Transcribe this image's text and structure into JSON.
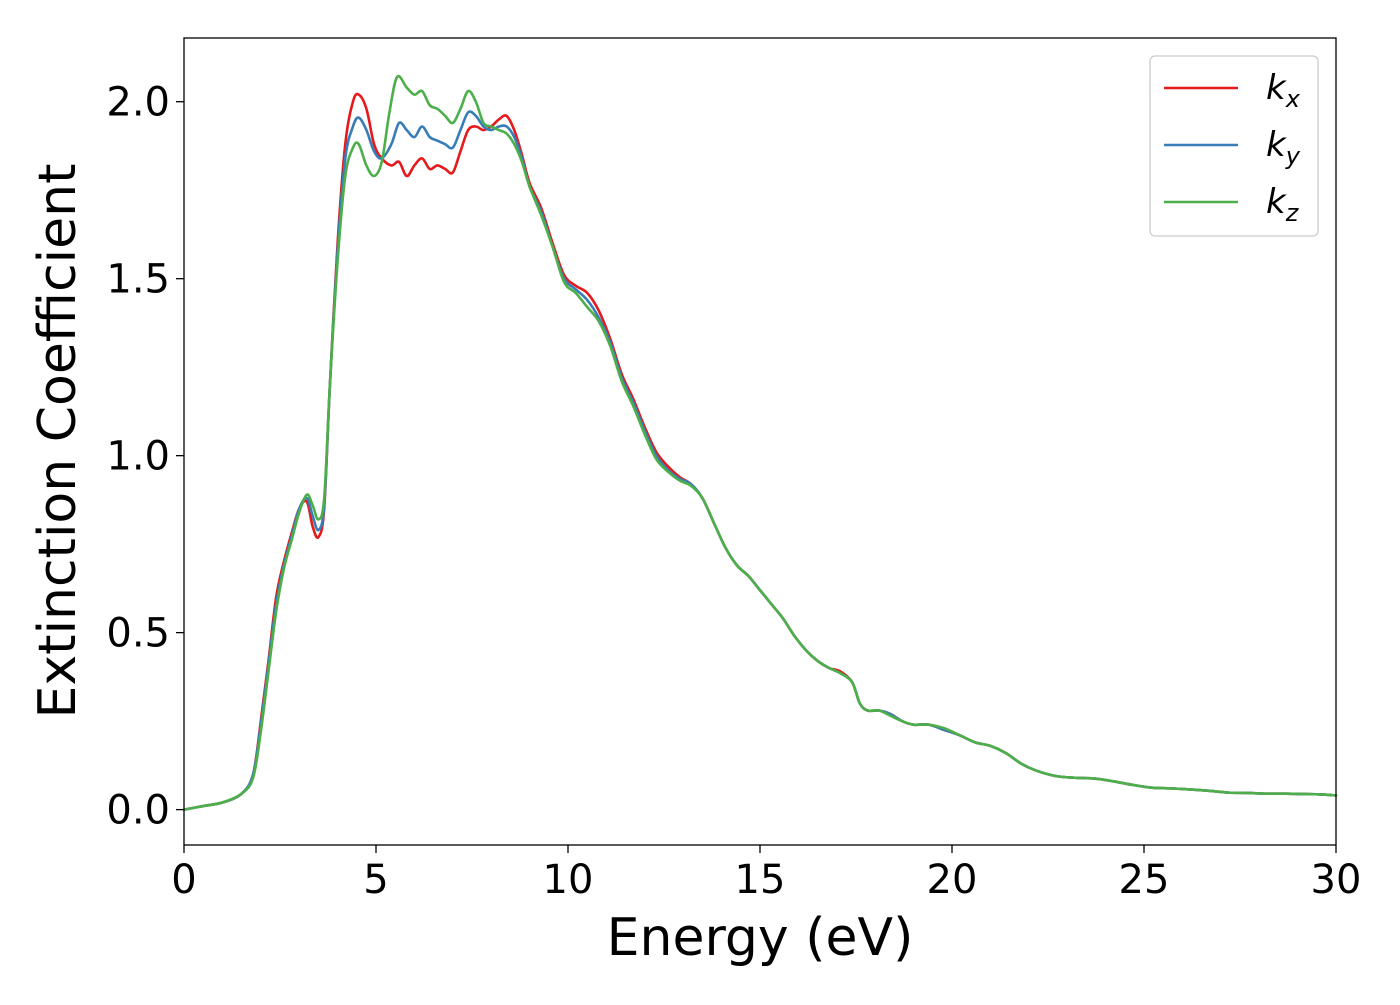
{
  "chart_data": {
    "type": "line",
    "xlabel": "Energy (eV)",
    "ylabel": "Extinction Coefficient",
    "xlim": [
      0,
      30
    ],
    "ylim": [
      -0.1,
      2.18
    ],
    "x_ticks": [
      "0",
      "5",
      "10",
      "15",
      "20",
      "25",
      "30"
    ],
    "y_ticks": [
      "0.0",
      "0.5",
      "1.0",
      "1.5",
      "2.0"
    ],
    "grid": false,
    "legend_position": "top-right",
    "series": [
      {
        "name": "k",
        "subscript": "x",
        "color": "#e41a1c",
        "points": [
          [
            0,
            0.0
          ],
          [
            0.5,
            0.01
          ],
          [
            1.0,
            0.02
          ],
          [
            1.5,
            0.045
          ],
          [
            1.8,
            0.1
          ],
          [
            2.0,
            0.25
          ],
          [
            2.2,
            0.42
          ],
          [
            2.4,
            0.6
          ],
          [
            2.6,
            0.7
          ],
          [
            2.8,
            0.78
          ],
          [
            3.0,
            0.85
          ],
          [
            3.2,
            0.87
          ],
          [
            3.35,
            0.8
          ],
          [
            3.5,
            0.77
          ],
          [
            3.65,
            0.85
          ],
          [
            3.8,
            1.2
          ],
          [
            4.0,
            1.6
          ],
          [
            4.2,
            1.88
          ],
          [
            4.4,
            2.0
          ],
          [
            4.55,
            2.02
          ],
          [
            4.75,
            1.98
          ],
          [
            4.95,
            1.88
          ],
          [
            5.15,
            1.84
          ],
          [
            5.4,
            1.82
          ],
          [
            5.6,
            1.83
          ],
          [
            5.8,
            1.79
          ],
          [
            6.0,
            1.82
          ],
          [
            6.2,
            1.84
          ],
          [
            6.4,
            1.81
          ],
          [
            6.6,
            1.82
          ],
          [
            6.8,
            1.81
          ],
          [
            7.0,
            1.8
          ],
          [
            7.2,
            1.86
          ],
          [
            7.4,
            1.92
          ],
          [
            7.6,
            1.93
          ],
          [
            7.8,
            1.92
          ],
          [
            8.0,
            1.93
          ],
          [
            8.2,
            1.95
          ],
          [
            8.4,
            1.96
          ],
          [
            8.6,
            1.92
          ],
          [
            8.8,
            1.85
          ],
          [
            9.0,
            1.77
          ],
          [
            9.3,
            1.7
          ],
          [
            9.6,
            1.6
          ],
          [
            9.9,
            1.51
          ],
          [
            10.2,
            1.48
          ],
          [
            10.5,
            1.46
          ],
          [
            10.8,
            1.41
          ],
          [
            11.1,
            1.33
          ],
          [
            11.4,
            1.23
          ],
          [
            11.7,
            1.16
          ],
          [
            12.0,
            1.08
          ],
          [
            12.3,
            1.01
          ],
          [
            12.6,
            0.97
          ],
          [
            12.9,
            0.94
          ],
          [
            13.2,
            0.92
          ],
          [
            13.5,
            0.88
          ],
          [
            13.8,
            0.81
          ],
          [
            14.1,
            0.74
          ],
          [
            14.4,
            0.69
          ],
          [
            14.7,
            0.66
          ],
          [
            15.0,
            0.62
          ],
          [
            15.3,
            0.58
          ],
          [
            15.6,
            0.54
          ],
          [
            15.9,
            0.49
          ],
          [
            16.2,
            0.45
          ],
          [
            16.5,
            0.42
          ],
          [
            16.8,
            0.4
          ],
          [
            17.1,
            0.39
          ],
          [
            17.4,
            0.36
          ],
          [
            17.6,
            0.3
          ],
          [
            17.8,
            0.28
          ],
          [
            18.1,
            0.28
          ],
          [
            18.4,
            0.27
          ],
          [
            18.7,
            0.25
          ],
          [
            19.0,
            0.24
          ],
          [
            19.4,
            0.24
          ],
          [
            19.8,
            0.225
          ],
          [
            20.2,
            0.21
          ],
          [
            20.6,
            0.19
          ],
          [
            21.0,
            0.18
          ],
          [
            21.4,
            0.16
          ],
          [
            21.8,
            0.13
          ],
          [
            22.2,
            0.11
          ],
          [
            22.7,
            0.095
          ],
          [
            23.2,
            0.09
          ],
          [
            23.7,
            0.088
          ],
          [
            24.2,
            0.08
          ],
          [
            24.7,
            0.07
          ],
          [
            25.2,
            0.062
          ],
          [
            25.7,
            0.06
          ],
          [
            26.2,
            0.057
          ],
          [
            26.7,
            0.053
          ],
          [
            27.2,
            0.048
          ],
          [
            27.7,
            0.047
          ],
          [
            28.2,
            0.045
          ],
          [
            28.7,
            0.045
          ],
          [
            29.2,
            0.044
          ],
          [
            29.6,
            0.043
          ],
          [
            30.0,
            0.04
          ]
        ]
      },
      {
        "name": "k",
        "subscript": "y",
        "color": "#377eb8",
        "points": [
          [
            0,
            0.0
          ],
          [
            0.5,
            0.01
          ],
          [
            1.0,
            0.02
          ],
          [
            1.5,
            0.045
          ],
          [
            1.8,
            0.1
          ],
          [
            2.0,
            0.24
          ],
          [
            2.2,
            0.41
          ],
          [
            2.4,
            0.58
          ],
          [
            2.6,
            0.69
          ],
          [
            2.8,
            0.77
          ],
          [
            3.0,
            0.85
          ],
          [
            3.2,
            0.88
          ],
          [
            3.35,
            0.83
          ],
          [
            3.5,
            0.79
          ],
          [
            3.65,
            0.86
          ],
          [
            3.8,
            1.2
          ],
          [
            4.0,
            1.58
          ],
          [
            4.2,
            1.84
          ],
          [
            4.4,
            1.93
          ],
          [
            4.55,
            1.955
          ],
          [
            4.75,
            1.92
          ],
          [
            4.95,
            1.86
          ],
          [
            5.15,
            1.84
          ],
          [
            5.4,
            1.88
          ],
          [
            5.6,
            1.94
          ],
          [
            5.8,
            1.92
          ],
          [
            6.0,
            1.9
          ],
          [
            6.2,
            1.93
          ],
          [
            6.4,
            1.9
          ],
          [
            6.6,
            1.89
          ],
          [
            6.8,
            1.88
          ],
          [
            7.0,
            1.87
          ],
          [
            7.2,
            1.92
          ],
          [
            7.4,
            1.97
          ],
          [
            7.6,
            1.96
          ],
          [
            7.8,
            1.93
          ],
          [
            8.0,
            1.92
          ],
          [
            8.2,
            1.93
          ],
          [
            8.4,
            1.93
          ],
          [
            8.6,
            1.9
          ],
          [
            8.8,
            1.84
          ],
          [
            9.0,
            1.76
          ],
          [
            9.3,
            1.69
          ],
          [
            9.6,
            1.59
          ],
          [
            9.9,
            1.5
          ],
          [
            10.2,
            1.47
          ],
          [
            10.5,
            1.44
          ],
          [
            10.8,
            1.39
          ],
          [
            11.1,
            1.32
          ],
          [
            11.4,
            1.22
          ],
          [
            11.7,
            1.15
          ],
          [
            12.0,
            1.07
          ],
          [
            12.3,
            1.0
          ],
          [
            12.6,
            0.96
          ],
          [
            12.9,
            0.935
          ],
          [
            13.2,
            0.92
          ],
          [
            13.5,
            0.88
          ],
          [
            13.8,
            0.81
          ],
          [
            14.1,
            0.74
          ],
          [
            14.4,
            0.69
          ],
          [
            14.7,
            0.66
          ],
          [
            15.0,
            0.62
          ],
          [
            15.3,
            0.58
          ],
          [
            15.6,
            0.54
          ],
          [
            15.9,
            0.49
          ],
          [
            16.2,
            0.45
          ],
          [
            16.5,
            0.42
          ],
          [
            16.8,
            0.4
          ],
          [
            17.1,
            0.385
          ],
          [
            17.4,
            0.36
          ],
          [
            17.6,
            0.3
          ],
          [
            17.8,
            0.28
          ],
          [
            18.1,
            0.28
          ],
          [
            18.4,
            0.27
          ],
          [
            18.7,
            0.25
          ],
          [
            19.0,
            0.24
          ],
          [
            19.4,
            0.24
          ],
          [
            19.8,
            0.225
          ],
          [
            20.2,
            0.21
          ],
          [
            20.6,
            0.19
          ],
          [
            21.0,
            0.18
          ],
          [
            21.4,
            0.16
          ],
          [
            21.8,
            0.13
          ],
          [
            22.2,
            0.11
          ],
          [
            22.7,
            0.095
          ],
          [
            23.2,
            0.09
          ],
          [
            23.7,
            0.088
          ],
          [
            24.2,
            0.08
          ],
          [
            24.7,
            0.07
          ],
          [
            25.2,
            0.062
          ],
          [
            25.7,
            0.06
          ],
          [
            26.2,
            0.057
          ],
          [
            26.7,
            0.053
          ],
          [
            27.2,
            0.048
          ],
          [
            27.7,
            0.047
          ],
          [
            28.2,
            0.045
          ],
          [
            28.7,
            0.045
          ],
          [
            29.2,
            0.044
          ],
          [
            29.6,
            0.043
          ],
          [
            30.0,
            0.04
          ]
        ]
      },
      {
        "name": "k",
        "subscript": "z",
        "color": "#4daf4a",
        "points": [
          [
            0,
            0.0
          ],
          [
            0.5,
            0.01
          ],
          [
            1.0,
            0.02
          ],
          [
            1.5,
            0.045
          ],
          [
            1.8,
            0.09
          ],
          [
            2.0,
            0.22
          ],
          [
            2.2,
            0.39
          ],
          [
            2.4,
            0.56
          ],
          [
            2.6,
            0.68
          ],
          [
            2.8,
            0.76
          ],
          [
            3.0,
            0.84
          ],
          [
            3.2,
            0.89
          ],
          [
            3.35,
            0.86
          ],
          [
            3.5,
            0.82
          ],
          [
            3.65,
            0.88
          ],
          [
            3.8,
            1.2
          ],
          [
            4.0,
            1.55
          ],
          [
            4.2,
            1.79
          ],
          [
            4.4,
            1.87
          ],
          [
            4.55,
            1.88
          ],
          [
            4.75,
            1.82
          ],
          [
            4.95,
            1.79
          ],
          [
            5.15,
            1.83
          ],
          [
            5.35,
            1.97
          ],
          [
            5.55,
            2.07
          ],
          [
            5.8,
            2.04
          ],
          [
            6.0,
            2.02
          ],
          [
            6.2,
            2.03
          ],
          [
            6.4,
            1.99
          ],
          [
            6.6,
            1.98
          ],
          [
            6.8,
            1.96
          ],
          [
            7.0,
            1.94
          ],
          [
            7.2,
            1.98
          ],
          [
            7.4,
            2.03
          ],
          [
            7.6,
            2.0
          ],
          [
            7.8,
            1.94
          ],
          [
            8.0,
            1.93
          ],
          [
            8.2,
            1.92
          ],
          [
            8.4,
            1.91
          ],
          [
            8.6,
            1.88
          ],
          [
            8.8,
            1.83
          ],
          [
            9.0,
            1.76
          ],
          [
            9.3,
            1.68
          ],
          [
            9.6,
            1.59
          ],
          [
            9.9,
            1.49
          ],
          [
            10.2,
            1.46
          ],
          [
            10.5,
            1.42
          ],
          [
            10.8,
            1.38
          ],
          [
            11.1,
            1.31
          ],
          [
            11.4,
            1.21
          ],
          [
            11.7,
            1.14
          ],
          [
            12.0,
            1.06
          ],
          [
            12.3,
            0.99
          ],
          [
            12.6,
            0.955
          ],
          [
            12.9,
            0.93
          ],
          [
            13.2,
            0.915
          ],
          [
            13.5,
            0.88
          ],
          [
            13.8,
            0.81
          ],
          [
            14.1,
            0.74
          ],
          [
            14.4,
            0.69
          ],
          [
            14.7,
            0.66
          ],
          [
            15.0,
            0.62
          ],
          [
            15.3,
            0.58
          ],
          [
            15.6,
            0.54
          ],
          [
            15.9,
            0.49
          ],
          [
            16.2,
            0.45
          ],
          [
            16.5,
            0.42
          ],
          [
            16.8,
            0.4
          ],
          [
            17.1,
            0.385
          ],
          [
            17.4,
            0.36
          ],
          [
            17.6,
            0.3
          ],
          [
            17.8,
            0.28
          ],
          [
            18.1,
            0.28
          ],
          [
            18.4,
            0.265
          ],
          [
            18.7,
            0.25
          ],
          [
            19.0,
            0.24
          ],
          [
            19.4,
            0.24
          ],
          [
            19.8,
            0.23
          ],
          [
            20.2,
            0.21
          ],
          [
            20.6,
            0.19
          ],
          [
            21.0,
            0.18
          ],
          [
            21.4,
            0.16
          ],
          [
            21.8,
            0.13
          ],
          [
            22.2,
            0.11
          ],
          [
            22.7,
            0.095
          ],
          [
            23.2,
            0.09
          ],
          [
            23.7,
            0.088
          ],
          [
            24.2,
            0.08
          ],
          [
            24.7,
            0.07
          ],
          [
            25.2,
            0.062
          ],
          [
            25.7,
            0.06
          ],
          [
            26.2,
            0.057
          ],
          [
            26.7,
            0.053
          ],
          [
            27.2,
            0.048
          ],
          [
            27.7,
            0.047
          ],
          [
            28.2,
            0.045
          ],
          [
            28.7,
            0.045
          ],
          [
            29.2,
            0.044
          ],
          [
            29.6,
            0.043
          ],
          [
            30.0,
            0.04
          ]
        ]
      }
    ]
  }
}
